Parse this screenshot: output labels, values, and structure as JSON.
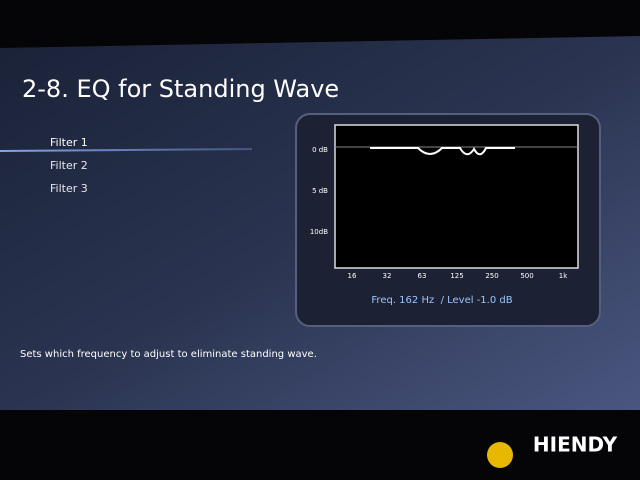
{
  "header": {
    "title": "2-8. EQ for Standing Wave"
  },
  "menu": {
    "items": [
      "Filter 1",
      "Filter 2",
      "Filter 3"
    ],
    "selected": 0
  },
  "graph": {
    "y_labels": [
      "0 dB",
      "5 dB",
      "10dB"
    ],
    "x_labels": [
      "16",
      "32",
      "63",
      "125",
      "250",
      "500",
      "1k"
    ]
  },
  "status": "Freq. 162 Hz  / Level -1.0 dB",
  "help": "Sets which frequency to adjust to eliminate standing wave.",
  "watermark": "HIENDY"
}
